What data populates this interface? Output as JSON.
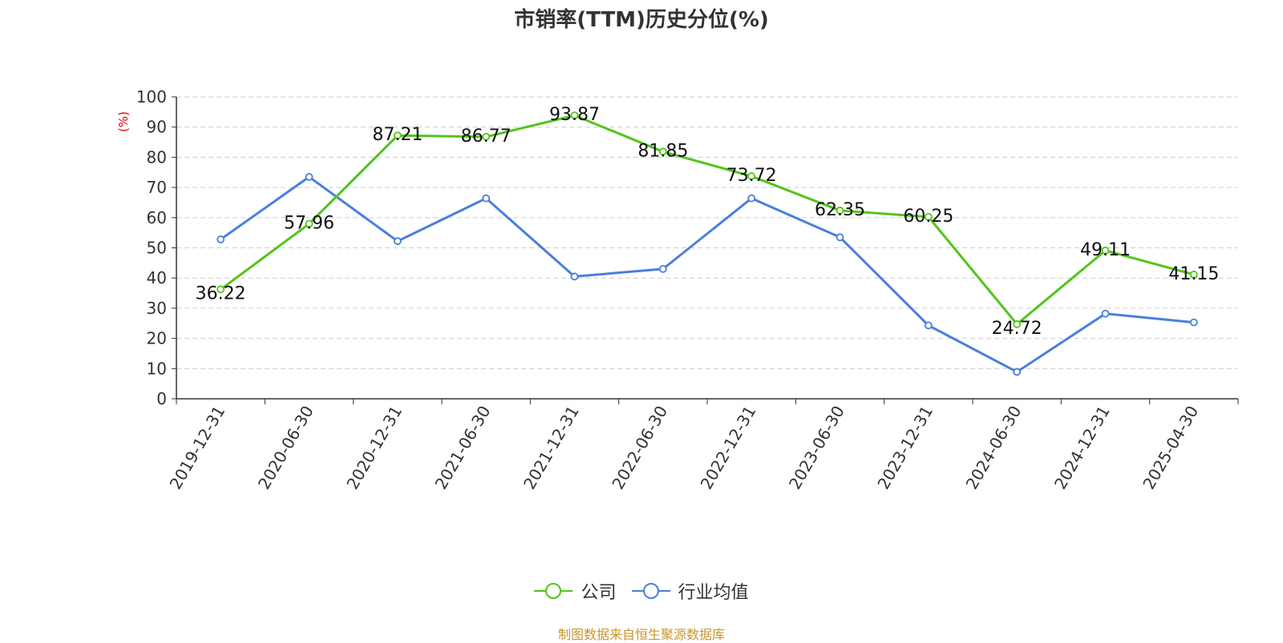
{
  "chart_data": {
    "type": "line",
    "title": "市销率(TTM)历史分位(%)",
    "ylabel": "(%)",
    "xlabel": "",
    "ylim": [
      0,
      100
    ],
    "yticks": [
      0,
      10,
      20,
      30,
      40,
      50,
      60,
      70,
      80,
      90,
      100
    ],
    "grid": true,
    "legend_position": "bottom",
    "categories": [
      "2019-12-31",
      "2020-06-30",
      "2020-12-31",
      "2021-06-30",
      "2021-12-31",
      "2022-06-30",
      "2022-12-31",
      "2023-06-30",
      "2023-12-31",
      "2024-06-30",
      "2024-12-31",
      "2025-04-30"
    ],
    "series": [
      {
        "name": "公司",
        "color": "#52c41a",
        "show_labels": true,
        "values": [
          36.22,
          57.96,
          87.21,
          86.77,
          93.87,
          81.85,
          73.72,
          62.35,
          60.25,
          24.72,
          49.11,
          41.15
        ]
      },
      {
        "name": "行业均值",
        "color": "#4a7fdc",
        "show_labels": false,
        "values": [
          52.8,
          73.5,
          52.2,
          66.4,
          40.5,
          43.0,
          66.4,
          53.5,
          24.3,
          8.9,
          28.2,
          25.3
        ]
      }
    ]
  },
  "footer": {
    "source": "制图数据来自恒生聚源数据库"
  }
}
